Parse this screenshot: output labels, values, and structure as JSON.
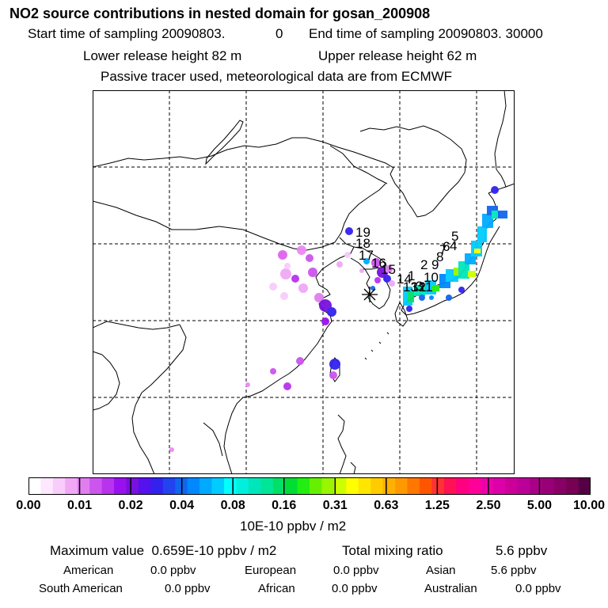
{
  "header": {
    "title": "NO2 source contributions in nested domain for gosan_200908",
    "start_time": "Start time of sampling 20090803.",
    "start_value": "0",
    "end_time": "End time of sampling 20090803. 30000",
    "lower_release": "Lower release height   82 m",
    "upper_release": "Upper release height   62 m",
    "tracer_note": "Passive tracer used, meteorological data are from ECMWF"
  },
  "map": {
    "station_labels": [
      "19",
      "18",
      "17",
      "16",
      "15",
      "14",
      "13",
      "12",
      "11",
      "10",
      "9",
      "8",
      "7",
      "6",
      "5",
      "4",
      "3",
      "2",
      "1"
    ]
  },
  "colorbar": {
    "ticks": [
      "0.00",
      "0.01",
      "0.02",
      "0.04",
      "0.08",
      "0.16",
      "0.31",
      "0.63",
      "1.25",
      "2.50",
      "5.00",
      "10.00"
    ],
    "units": "10E-10 ppbv / m2",
    "colors": [
      "#ffffff",
      "#fde8ff",
      "#f8ccfb",
      "#f0a8f5",
      "#e07ef0",
      "#cc55ee",
      "#b833ee",
      "#9911ee",
      "#7711dd",
      "#5511ee",
      "#3322ee",
      "#2244ee",
      "#1166ee",
      "#0088ff",
      "#00aaff",
      "#00ccff",
      "#00ffff",
      "#00f0dd",
      "#00e6bb",
      "#00e699",
      "#00e066",
      "#00dd33",
      "#22ee11",
      "#66f000",
      "#99f500",
      "#ccff00",
      "#ffff00",
      "#ffe600",
      "#ffcc00",
      "#ffb000",
      "#ff9900",
      "#ff7700",
      "#ff5500",
      "#ff3333",
      "#ff1155",
      "#ff0080",
      "#ff0099",
      "#ee00aa",
      "#dd00aa",
      "#cc0099",
      "#bb0099",
      "#aa0088",
      "#990077",
      "#880066",
      "#770055",
      "#550044"
    ]
  },
  "summary": {
    "max_label": "Maximum value",
    "max_value": "0.659E-10 ppbv / m2",
    "total_label": "Total mixing ratio",
    "total_value": "5.6 ppbv",
    "rows": [
      [
        {
          "label": "American",
          "value": "0.0 ppbv"
        },
        {
          "label": "European",
          "value": "0.0 ppbv"
        },
        {
          "label": "Asian",
          "value": "5.6 ppbv"
        }
      ],
      [
        {
          "label": "South American",
          "value": "0.0 ppbv"
        },
        {
          "label": "African",
          "value": "0.0 ppbv"
        },
        {
          "label": "Australian",
          "value": "0.0 ppbv"
        }
      ]
    ]
  }
}
